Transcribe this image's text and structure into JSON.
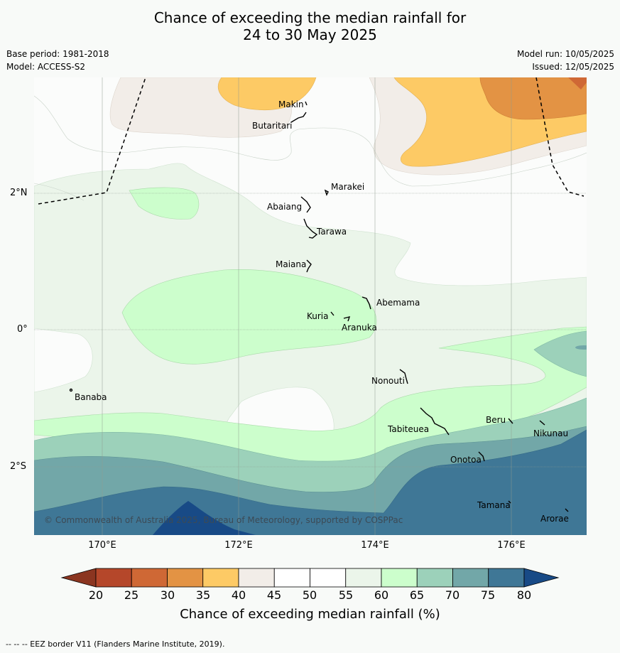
{
  "title_line1": "Chance of exceeding the median rainfall for",
  "title_line2": "24 to 30 May 2025",
  "base_period": "Base period: 1981-2018",
  "model": "Model: ACCESS-S2",
  "model_run": "Model run: 10/05/2025",
  "issued": "Issued: 12/05/2025",
  "copyright": "© Commonwealth of Australia 2025, Bureau of Meteorology, supported by COSPPac",
  "lat_labels": [
    "2°N",
    "0°",
    "2°S"
  ],
  "lon_labels": [
    "170°E",
    "172°E",
    "174°E",
    "176°E"
  ],
  "places": {
    "makin": "Makin",
    "butaritari": "Butaritari",
    "marakei": "Marakei",
    "abaiang": "Abaiang",
    "tarawa": "Tarawa",
    "maiana": "Maiana",
    "abemama": "Abemama",
    "kuria": "Kuria",
    "aranuka": "Aranuka",
    "nonouti": "Nonouti",
    "banaba": "Banaba",
    "tabiteuea": "Tabiteuea",
    "beru": "Beru",
    "nikunau": "Nikunau",
    "onotoa": "Onotoa",
    "tamana": "Tamana",
    "arorae": "Arorae"
  },
  "colorbar": {
    "ticks": [
      "20",
      "25",
      "30",
      "35",
      "40",
      "45",
      "50",
      "55",
      "60",
      "65",
      "70",
      "75",
      "80"
    ],
    "colors": [
      "#b5472a",
      "#cf6835",
      "#e39344",
      "#fdca65",
      "#f2ede8",
      "#ffffff",
      "#ffffff",
      "#ebf5ea",
      "#ccfecc",
      "#9cd1ba",
      "#72a7a8",
      "#3f7796"
    ],
    "low_color": "#8b3520",
    "high_color": "#184a86",
    "label": "Chance of exceeding median rainfall (%)"
  },
  "footnote": "--  --  -- EEZ border V11 (Flanders Marine Institute, 2019)."
}
